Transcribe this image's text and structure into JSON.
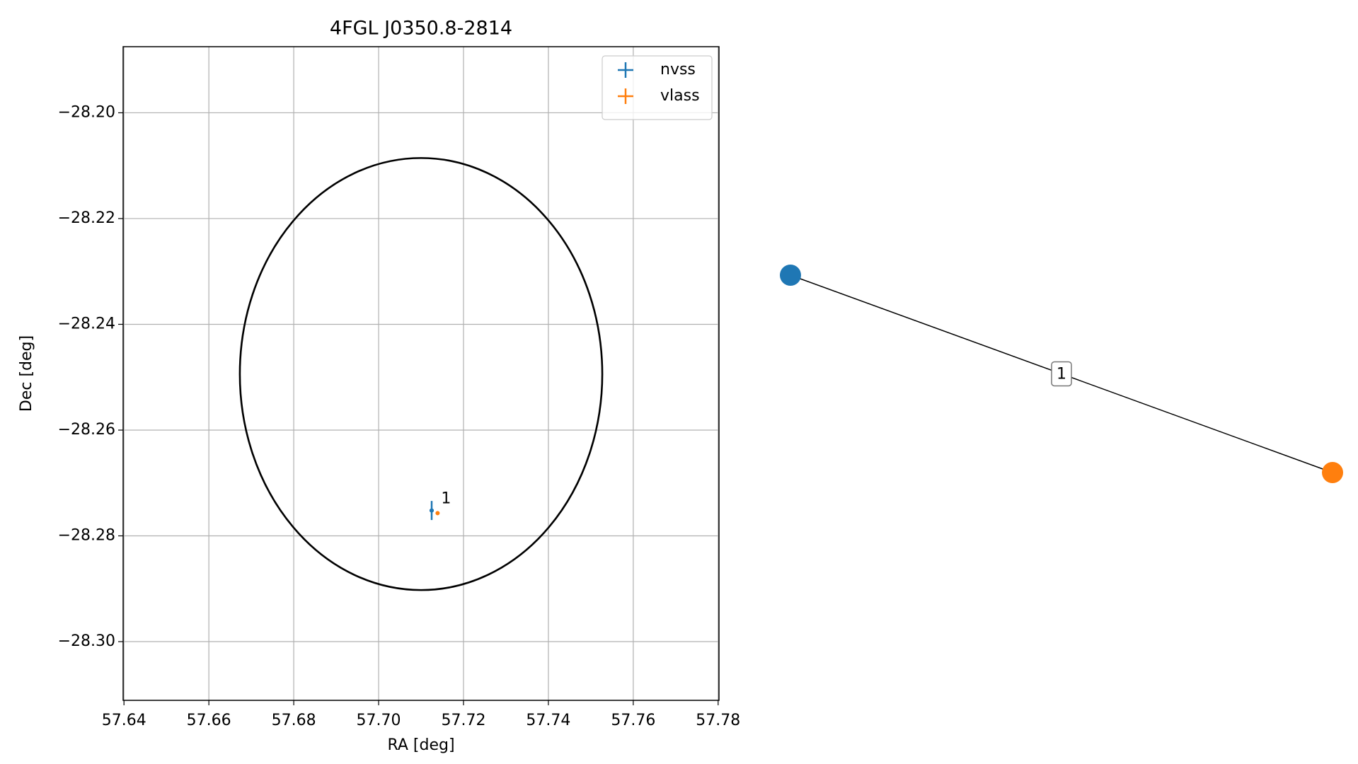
{
  "chart_data": [
    {
      "type": "scatter",
      "title": "4FGL J0350.8-2814",
      "xlabel": "RA [deg]",
      "ylabel": "Dec [deg]",
      "xlim": [
        57.6398,
        57.7802
      ],
      "ylim": [
        -28.3111,
        -28.1875
      ],
      "xticks": [
        {
          "value": 57.64,
          "label": "57.64"
        },
        {
          "value": 57.66,
          "label": "57.66"
        },
        {
          "value": 57.68,
          "label": "57.68"
        },
        {
          "value": 57.7,
          "label": "57.70"
        },
        {
          "value": 57.72,
          "label": "57.72"
        },
        {
          "value": 57.74,
          "label": "57.74"
        },
        {
          "value": 57.76,
          "label": "57.76"
        },
        {
          "value": 57.78,
          "label": "57.78"
        }
      ],
      "yticks": [
        {
          "value": -28.2,
          "label": "−28.20"
        },
        {
          "value": -28.22,
          "label": "−28.22"
        },
        {
          "value": -28.24,
          "label": "−28.24"
        },
        {
          "value": -28.26,
          "label": "−28.26"
        },
        {
          "value": -28.28,
          "label": "−28.28"
        },
        {
          "value": -28.3,
          "label": "−28.30"
        }
      ],
      "grid": true,
      "legend": "upper right",
      "ellipse": {
        "x": 57.71,
        "y": -28.2494,
        "width": 0.0854,
        "height": 0.0817,
        "color": "#000000"
      },
      "series": [
        {
          "name": "nvss",
          "color": "#1f77b4",
          "x": [
            57.7125
          ],
          "values": [
            -28.2752
          ],
          "xerr": [
            0.0005
          ],
          "yerr": [
            0.0018
          ]
        },
        {
          "name": "vlass",
          "color": "#ff7f0e",
          "x": [
            57.7139
          ],
          "values": [
            -28.2757
          ],
          "xerr": [
            0.0003
          ],
          "yerr": [
            0.0003
          ]
        }
      ],
      "annotations": [
        "1"
      ]
    },
    {
      "type": "graph",
      "nodes": [
        {
          "color": "#1f77b4"
        },
        {
          "color": "#ff7f0e"
        }
      ],
      "edges": [
        {
          "source": 0,
          "target": 1,
          "label": "1"
        }
      ]
    }
  ]
}
